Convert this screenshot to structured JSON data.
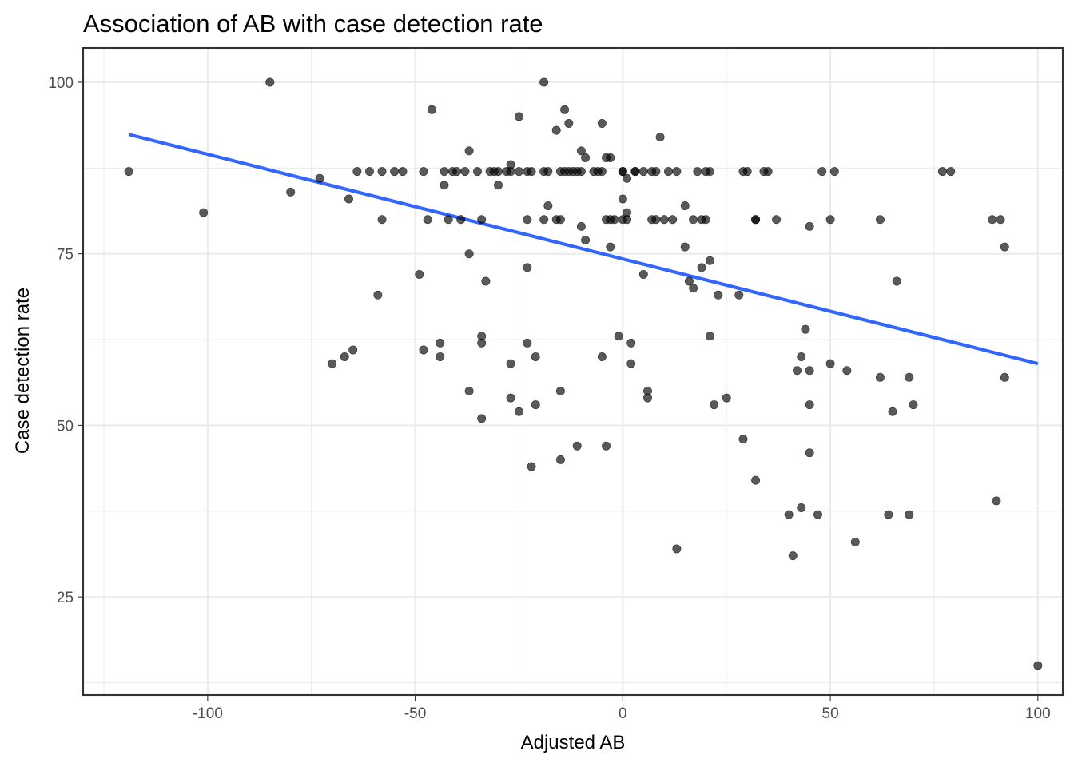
{
  "chart_data": {
    "type": "scatter",
    "title": "Association of AB with case detection rate",
    "xlabel": "Adjusted AB",
    "ylabel": "Case detection rate",
    "xlim": [
      -130,
      106
    ],
    "ylim": [
      10.7,
      105
    ],
    "x_ticks": [
      -100,
      -50,
      0,
      50,
      100
    ],
    "x_tick_labels": [
      "-100",
      "-50",
      "0",
      "50",
      "100"
    ],
    "y_ticks": [
      25,
      50,
      75,
      100
    ],
    "y_tick_labels": [
      "25",
      "50",
      "75",
      "100"
    ],
    "grid": true,
    "colors": {
      "points": "#000000",
      "fit_line": "#3366ff"
    },
    "points": [
      [
        -119,
        87
      ],
      [
        -101,
        81
      ],
      [
        -85,
        100
      ],
      [
        -80,
        84
      ],
      [
        -73,
        86
      ],
      [
        -70,
        59
      ],
      [
        -67,
        60
      ],
      [
        -66,
        83
      ],
      [
        -65,
        61
      ],
      [
        -64,
        87
      ],
      [
        -61,
        87
      ],
      [
        -59,
        69
      ],
      [
        -58,
        80
      ],
      [
        -58,
        87
      ],
      [
        -55,
        87
      ],
      [
        -53,
        87
      ],
      [
        -49,
        72
      ],
      [
        -48,
        61
      ],
      [
        -48,
        87
      ],
      [
        -46,
        96
      ],
      [
        -47,
        80
      ],
      [
        -44,
        62
      ],
      [
        -44,
        60
      ],
      [
        -43,
        87
      ],
      [
        -43,
        85
      ],
      [
        -42,
        80
      ],
      [
        -41,
        87
      ],
      [
        -40,
        87
      ],
      [
        -39,
        80
      ],
      [
        -38,
        87
      ],
      [
        -37,
        90
      ],
      [
        -37,
        75
      ],
      [
        -37,
        55
      ],
      [
        -35,
        87
      ],
      [
        -34,
        63
      ],
      [
        -34,
        62
      ],
      [
        -34,
        51
      ],
      [
        -34,
        80
      ],
      [
        -33,
        71
      ],
      [
        -32,
        87
      ],
      [
        -31,
        87
      ],
      [
        -30,
        87
      ],
      [
        -30,
        85
      ],
      [
        -28,
        87
      ],
      [
        -27,
        88
      ],
      [
        -27,
        87
      ],
      [
        -27,
        59
      ],
      [
        -27,
        54
      ],
      [
        -25,
        87
      ],
      [
        -25,
        52
      ],
      [
        -25,
        95
      ],
      [
        -23,
        62
      ],
      [
        -23,
        73
      ],
      [
        -23,
        80
      ],
      [
        -23,
        87
      ],
      [
        -22,
        87
      ],
      [
        -22,
        44
      ],
      [
        -21,
        60
      ],
      [
        -21,
        53
      ],
      [
        -19,
        100
      ],
      [
        -19,
        87
      ],
      [
        -19,
        80
      ],
      [
        -18,
        82
      ],
      [
        -18,
        87
      ],
      [
        -16,
        93
      ],
      [
        -16,
        80
      ],
      [
        -15,
        45
      ],
      [
        -15,
        55
      ],
      [
        -15,
        87
      ],
      [
        -15,
        80
      ],
      [
        -14,
        96
      ],
      [
        -14,
        87
      ],
      [
        -13,
        87
      ],
      [
        -13,
        94
      ],
      [
        -12,
        87
      ],
      [
        -11,
        87
      ],
      [
        -11,
        47
      ],
      [
        -10,
        79
      ],
      [
        -10,
        90
      ],
      [
        -10,
        87
      ],
      [
        -9,
        77
      ],
      [
        -9,
        89
      ],
      [
        -7,
        87
      ],
      [
        -6,
        87
      ],
      [
        -5,
        94
      ],
      [
        -5,
        87
      ],
      [
        -5,
        60
      ],
      [
        -4,
        80
      ],
      [
        -4,
        47
      ],
      [
        -4,
        89
      ],
      [
        -3,
        80
      ],
      [
        -3,
        89
      ],
      [
        -3,
        76
      ],
      [
        -2,
        80
      ],
      [
        -1,
        63
      ],
      [
        0,
        80
      ],
      [
        0,
        87
      ],
      [
        0,
        87
      ],
      [
        0,
        83
      ],
      [
        1,
        86
      ],
      [
        1,
        81
      ],
      [
        1,
        80
      ],
      [
        2,
        62
      ],
      [
        2,
        59
      ],
      [
        3,
        87
      ],
      [
        3,
        87
      ],
      [
        5,
        72
      ],
      [
        5,
        87
      ],
      [
        6,
        54
      ],
      [
        6,
        55
      ],
      [
        7,
        87
      ],
      [
        7,
        80
      ],
      [
        8,
        87
      ],
      [
        8,
        80
      ],
      [
        9,
        92
      ],
      [
        10,
        80
      ],
      [
        11,
        87
      ],
      [
        12,
        80
      ],
      [
        13,
        87
      ],
      [
        13,
        32
      ],
      [
        15,
        82
      ],
      [
        15,
        76
      ],
      [
        16,
        71
      ],
      [
        17,
        70
      ],
      [
        17,
        80
      ],
      [
        18,
        87
      ],
      [
        19,
        73
      ],
      [
        19,
        80
      ],
      [
        20,
        87
      ],
      [
        20,
        80
      ],
      [
        21,
        74
      ],
      [
        21,
        63
      ],
      [
        21,
        87
      ],
      [
        22,
        53
      ],
      [
        23,
        69
      ],
      [
        25,
        54
      ],
      [
        28,
        69
      ],
      [
        29,
        48
      ],
      [
        29,
        87
      ],
      [
        30,
        87
      ],
      [
        32,
        80
      ],
      [
        32,
        42
      ],
      [
        32,
        80
      ],
      [
        34,
        87
      ],
      [
        35,
        87
      ],
      [
        37,
        80
      ],
      [
        40,
        37
      ],
      [
        41,
        31
      ],
      [
        42,
        58
      ],
      [
        43,
        38
      ],
      [
        43,
        60
      ],
      [
        44,
        64
      ],
      [
        45,
        58
      ],
      [
        45,
        46
      ],
      [
        45,
        53
      ],
      [
        45,
        79
      ],
      [
        47,
        37
      ],
      [
        48,
        87
      ],
      [
        50,
        80
      ],
      [
        50,
        59
      ],
      [
        51,
        87
      ],
      [
        54,
        58
      ],
      [
        56,
        33
      ],
      [
        62,
        57
      ],
      [
        62,
        80
      ],
      [
        64,
        37
      ],
      [
        65,
        52
      ],
      [
        66,
        71
      ],
      [
        69,
        57
      ],
      [
        69,
        37
      ],
      [
        70,
        53
      ],
      [
        77,
        87
      ],
      [
        79,
        87
      ],
      [
        89,
        80
      ],
      [
        90,
        39
      ],
      [
        91,
        80
      ],
      [
        92,
        57
      ],
      [
        92,
        76
      ],
      [
        100,
        15
      ]
    ],
    "fit_line": {
      "x": [
        -119,
        100
      ],
      "y": [
        92.4,
        59.0
      ]
    }
  }
}
